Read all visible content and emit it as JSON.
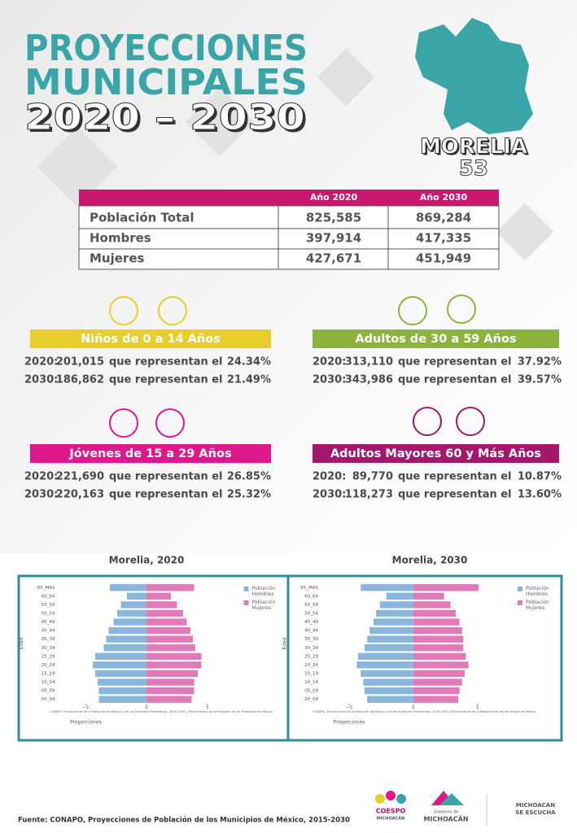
{
  "header": {
    "line1": "PROYECCIONES",
    "line2": "MUNICIPALES",
    "line3": "2020 – 2030",
    "municipality": "MORELIA",
    "number": "53"
  },
  "table": {
    "columns": [
      "Año 2020",
      "Año 2030"
    ],
    "rows": [
      [
        "Población Total",
        "825,585",
        "869,284"
      ],
      [
        "Hombres",
        "397,914",
        "417,335"
      ],
      [
        "Mujeres",
        "427,671",
        "451,949"
      ]
    ]
  },
  "sections": [
    {
      "title": "Niños de 0 a 14 Años",
      "color": "#e6cf2c",
      "rows": [
        [
          "2020:",
          "201,015",
          "que representan el",
          "24.34%"
        ],
        [
          "2030:",
          "186,862",
          "que representan el",
          "21.49%"
        ]
      ]
    },
    {
      "title": "Adultos de 30 a 59 Años",
      "color": "#8db43a",
      "rows": [
        [
          "2020:",
          "313,110",
          "que representan el",
          "37.92%"
        ],
        [
          "2030:",
          "343,986",
          "que representan el",
          "39.57%"
        ]
      ]
    },
    {
      "title": "Jóvenes de 15 a 29 Años",
      "color": "#e0168b",
      "rows": [
        [
          "2020:",
          "221,690",
          "que representan el",
          "26.85%"
        ],
        [
          "2030:",
          "220,163",
          "que representan el",
          "25.32%"
        ]
      ]
    },
    {
      "title": "Adultos Mayores  60 y Más Años",
      "color": "#a3176c",
      "rows": [
        [
          "2020:",
          "89,770",
          "que representan el",
          "10.87%"
        ],
        [
          "2030:",
          "118,273",
          "que representan el",
          "13.60%"
        ]
      ]
    }
  ],
  "chart_data": [
    {
      "type": "pyramid",
      "title": "Morelia, 2020",
      "y_label": "Edad",
      "x_label": "Proporciones",
      "note": "CONAPO. Proyecciones de la Población de México y de las Entidades Federativas, 2016-2050 y Proyecciones de la Población de los Municipios de México",
      "categories": [
        "00_04",
        "05_09",
        "10_14",
        "15_19",
        "20_24",
        "25_29",
        "30_34",
        "35_39",
        "40_44",
        "45_49",
        "50_54",
        "55_59",
        "60_64",
        "65_MAS"
      ],
      "series": [
        {
          "name": "Población Hombres",
          "color": "#89b6dc",
          "values": [
            -3.9,
            -3.9,
            -4.0,
            -4.2,
            -4.4,
            -4.2,
            -3.5,
            -3.3,
            -3.1,
            -2.7,
            -2.4,
            -2.1,
            -1.6,
            -3.0
          ]
        },
        {
          "name": "Población Mujeres",
          "color": "#e07ab9",
          "values": [
            3.7,
            3.9,
            3.9,
            4.2,
            4.5,
            4.5,
            4.0,
            3.8,
            3.6,
            3.3,
            3.0,
            2.5,
            2.0,
            3.9
          ]
        }
      ],
      "xlim": [
        -5.7,
        11.3
      ],
      "xticks": [
        {
          "value": -5,
          "label": "−5"
        },
        0,
        5
      ],
      "legend": "upper right"
    },
    {
      "type": "pyramid",
      "title": "Morelia, 2030",
      "y_label": "Edad",
      "x_label": "Proporciones",
      "note": "CONAPO. Proyecciones de la Población de México y de las Entidades Federativas, 2016-2050 y Proyecciones de la Población de los Municipios de México",
      "categories": [
        "00_04",
        "05_09",
        "10_14",
        "15_19",
        "20_24",
        "25_29",
        "30_34",
        "35_39",
        "40_44",
        "45_49",
        "50_54",
        "55_59",
        "60_64",
        "65_MAS"
      ],
      "series": [
        {
          "name": "Población Hombres",
          "color": "#89b6dc",
          "values": [
            -3.6,
            -3.8,
            -3.9,
            -4.1,
            -4.4,
            -4.3,
            -3.8,
            -3.6,
            -3.4,
            -3.1,
            -2.9,
            -2.6,
            -2.1,
            -4.1
          ]
        },
        {
          "name": "Población Mujeres",
          "color": "#e07ab9",
          "values": [
            3.5,
            3.6,
            3.8,
            4.0,
            4.3,
            4.1,
            3.9,
            3.9,
            3.8,
            3.6,
            3.3,
            2.9,
            2.4,
            5.1
          ]
        }
      ],
      "xlim": [
        -5.7,
        11.3
      ],
      "xticks": [
        {
          "value": -5,
          "label": "−5"
        },
        0,
        5
      ],
      "legend": "upper right"
    }
  ],
  "footer": {
    "source": "Fuente: CONAPO, Proyecciones de Población de los Municipios de México, 2015-2030",
    "logo1": "COESPO",
    "logo1_sub": "MICHOACÁN",
    "logo2_top": "Gobierno de",
    "logo2": "MICHOACÁN",
    "logo3": "MICHOACÁN",
    "logo3_sub": "SE ESCUCHA"
  }
}
